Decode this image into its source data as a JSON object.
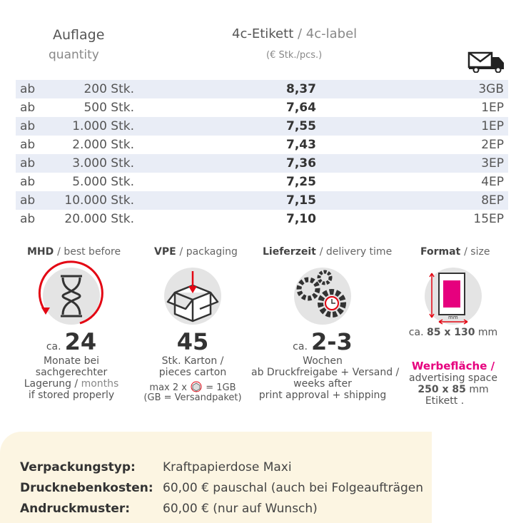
{
  "table": {
    "header": {
      "quantity_de": "Auflage",
      "quantity_en": "quantity",
      "label_de": "4c-Etikett",
      "label_en": "/ 4c-label",
      "unit": "(€ Stk./pcs.)"
    },
    "rows": [
      [
        "ab",
        "200 Stk.",
        "8,37",
        "3GB"
      ],
      [
        "ab",
        "500 Stk.",
        "7,64",
        "1EP"
      ],
      [
        "ab",
        "1.000 Stk.",
        "7,55",
        "1EP"
      ],
      [
        "ab",
        "2.000 Stk.",
        "7,43",
        "2EP"
      ],
      [
        "ab",
        "3.000 Stk.",
        "7,36",
        "3EP"
      ],
      [
        "ab",
        "5.000 Stk.",
        "7,25",
        "4EP"
      ],
      [
        "ab",
        "10.000 Stk.",
        "7,15",
        "8EP"
      ],
      [
        "ab",
        "20.000 Stk.",
        "7,10",
        "15EP"
      ]
    ]
  },
  "info": {
    "mhd": {
      "title": "MHD",
      "title_en": "/ best before",
      "prefix": "ca.",
      "value": "24",
      "line1": "Monate bei",
      "line2": "sachgerechter",
      "line3": "Lagerung /",
      "line3_en": "months",
      "line4": "if stored properly"
    },
    "vpe": {
      "title": "VPE",
      "title_en": "/ packaging",
      "value": "45",
      "line1": "Stk. Karton /",
      "line2": "pieces carton",
      "max_pre": "max 2 x",
      "max_post": "= 1GB",
      "note": "(GB = Versandpaket)"
    },
    "delivery": {
      "title": "Lieferzeit",
      "title_en": "/ delivery time",
      "prefix": "ca.",
      "value": "2-3",
      "line1": "Wochen",
      "line2": "ab Druckfreigabe + Versand /",
      "line3": "weeks after",
      "line4": "print approval + shipping"
    },
    "format": {
      "title": "Format",
      "title_en": "/ size",
      "icon_unit": "mm",
      "prefix": "ca.",
      "value": "85 x 130",
      "unit": "mm",
      "ad_title": "Werbefläche /",
      "ad_en": "advertising space",
      "ad_value": "250 x 85",
      "ad_unit": "mm",
      "ad_label": "Etikett ."
    }
  },
  "footer": [
    [
      "Verpackungstyp:",
      "Kraftpapierdose Maxi"
    ],
    [
      "Drucknebenkosten:",
      "60,00 € pauschal (auch bei Folgeaufträgen"
    ],
    [
      "Andruckmuster:",
      "60,00 € (nur auf Wunsch)"
    ]
  ]
}
